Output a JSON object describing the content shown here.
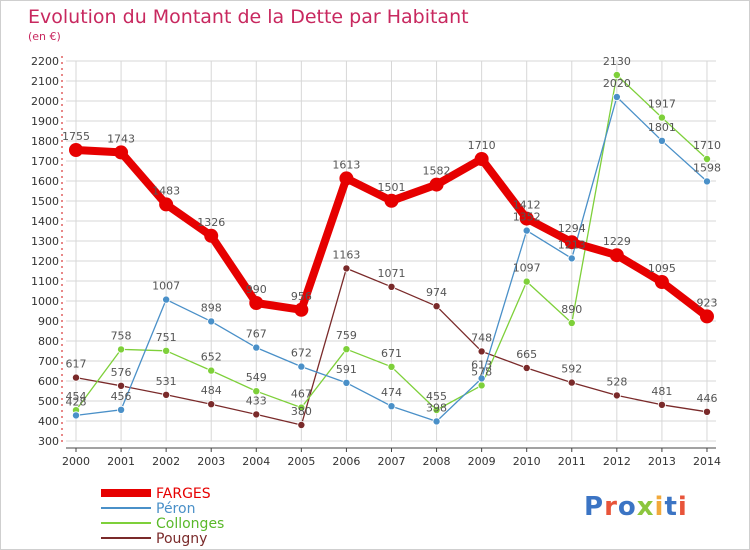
{
  "header": {
    "title": "Evolution du Montant de la Dette par Habitant",
    "unit": "(en €)"
  },
  "logo": {
    "text": "Proxiti",
    "colors": [
      "#3b74c4",
      "#e8543a",
      "#3b74c4",
      "#8cc63e",
      "#f2a93b",
      "#3b74c4",
      "#e8543a"
    ]
  },
  "chart_data": {
    "type": "line",
    "title": "Evolution du Montant de la Dette par Habitant",
    "subtitle": "(en €)",
    "xlabel": "",
    "ylabel": "",
    "x": [
      "2000",
      "2001",
      "2002",
      "2003",
      "2004",
      "2005",
      "2006",
      "2007",
      "2008",
      "2009",
      "2010",
      "2011",
      "2012",
      "2013",
      "2014"
    ],
    "ylim": [
      300,
      2200
    ],
    "yticks": [
      300,
      400,
      500,
      600,
      700,
      800,
      900,
      1000,
      1100,
      1200,
      1300,
      1400,
      1500,
      1600,
      1700,
      1800,
      1900,
      2000,
      2100,
      2200
    ],
    "grid": true,
    "legend_position": "bottom-left",
    "series": [
      {
        "name": "FARGES",
        "color": "#e60000",
        "values": [
          1755,
          1743,
          1483,
          1326,
          990,
          956,
          1613,
          1501,
          1582,
          1710,
          1412,
          1294,
          1229,
          1095,
          923
        ]
      },
      {
        "name": "Péron",
        "color": "#4a90c8",
        "values": [
          428,
          456,
          1007,
          898,
          767,
          672,
          591,
          474,
          398,
          613,
          1352,
          1213,
          2020,
          1801,
          1598
        ]
      },
      {
        "name": "Collonges",
        "color": "#7ed03a",
        "values": [
          454,
          758,
          751,
          652,
          549,
          467,
          759,
          671,
          455,
          578,
          1097,
          890,
          2130,
          1917,
          1710
        ]
      },
      {
        "name": "Pougny",
        "color": "#7a2a2a",
        "values": [
          617,
          576,
          531,
          484,
          433,
          380,
          1163,
          1071,
          974,
          748,
          665,
          592,
          528,
          481,
          446
        ]
      }
    ]
  }
}
